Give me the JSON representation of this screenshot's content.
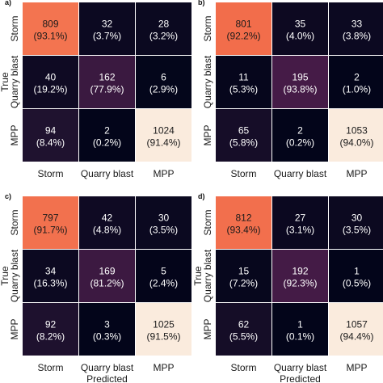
{
  "chart_data": [
    {
      "type": "heatmap",
      "panel_label": "a)",
      "xlabel": "",
      "ylabel": "True",
      "x_categories": [
        "Storm",
        "Quarry blast",
        "MPP"
      ],
      "y_categories": [
        "Storm",
        "Quarry blast",
        "MPP"
      ],
      "values": [
        [
          809,
          32,
          28
        ],
        [
          40,
          162,
          6
        ],
        [
          94,
          2,
          1024
        ]
      ],
      "percent_labels": [
        [
          "(93.1%)",
          "(3.7%)",
          "(3.2%)"
        ],
        [
          "(19.2%)",
          "(77.9%)",
          "(2.9%)"
        ],
        [
          "(8.4%)",
          "(0.2%)",
          "(91.4%)"
        ]
      ]
    },
    {
      "type": "heatmap",
      "panel_label": "b)",
      "xlabel": "",
      "ylabel": "",
      "x_categories": [
        "Storm",
        "Quarry blast",
        "MPP"
      ],
      "y_categories": [
        "Storm",
        "Quarry blast",
        "MPP"
      ],
      "values": [
        [
          801,
          35,
          33
        ],
        [
          11,
          195,
          2
        ],
        [
          65,
          2,
          1053
        ]
      ],
      "percent_labels": [
        [
          "(92.2%)",
          "(4.0%)",
          "(3.8%)"
        ],
        [
          "(5.3%)",
          "(93.8%)",
          "(1.0%)"
        ],
        [
          "(5.8%)",
          "(0.2%)",
          "(94.0%)"
        ]
      ]
    },
    {
      "type": "heatmap",
      "panel_label": "c)",
      "xlabel": "Predicted",
      "ylabel": "True",
      "x_categories": [
        "Storm",
        "Quarry blast",
        "MPP"
      ],
      "y_categories": [
        "Storm",
        "Quarry blast",
        "MPP"
      ],
      "values": [
        [
          797,
          42,
          30
        ],
        [
          34,
          169,
          5
        ],
        [
          92,
          3,
          1025
        ]
      ],
      "percent_labels": [
        [
          "(91.7%)",
          "(4.8%)",
          "(3.5%)"
        ],
        [
          "(16.3%)",
          "(81.2%)",
          "(2.4%)"
        ],
        [
          "(8.2%)",
          "(0.3%)",
          "(91.5%)"
        ]
      ]
    },
    {
      "type": "heatmap",
      "panel_label": "d)",
      "xlabel": "Predicted",
      "ylabel": "True",
      "x_categories": [
        "Storm",
        "Quarry blast",
        "MPP"
      ],
      "y_categories": [
        "Storm",
        "Quarry blast",
        "MPP"
      ],
      "values": [
        [
          812,
          27,
          30
        ],
        [
          15,
          192,
          1
        ],
        [
          62,
          1,
          1057
        ]
      ],
      "percent_labels": [
        [
          "(93.4%)",
          "(3.1%)",
          "(3.5%)"
        ],
        [
          "(7.2%)",
          "(92.3%)",
          "(0.5%)"
        ],
        [
          "(5.5%)",
          "(0.1%)",
          "(94.4%)"
        ]
      ]
    }
  ],
  "colors": {
    "colormap": [
      "#03051a",
      "#221331",
      "#4c1d4b",
      "#7c1d4b",
      "#a11a5b",
      "#cb1b4f",
      "#e83f3f",
      "#f06043",
      "#f37651",
      "#f6b48f",
      "#faebdd"
    ],
    "text_on_dark": "#ffffff",
    "text_on_light": "#1a1a1a",
    "background": "#ffffff"
  }
}
